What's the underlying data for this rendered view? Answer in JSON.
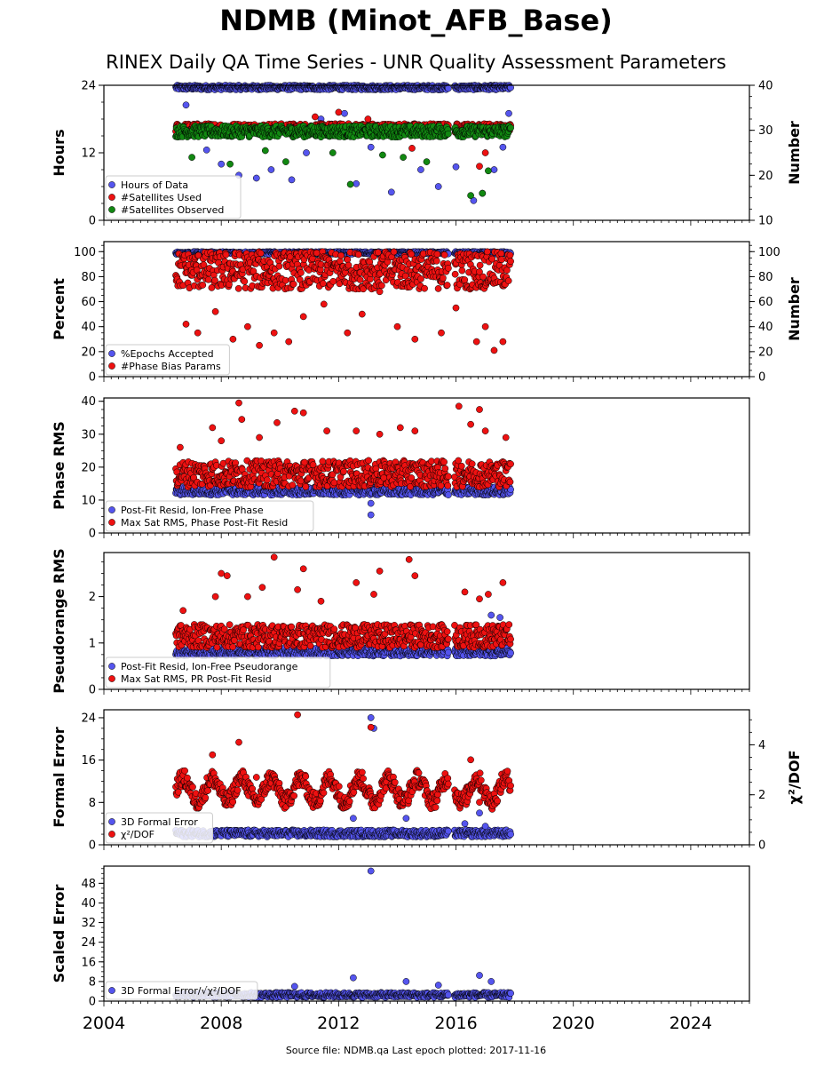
{
  "title": "NDMB (Minot_AFB_Base)",
  "subtitle": "RINEX Daily QA Time Series - UNR Quality Assessment Parameters",
  "source_note": "Source file: NDMB.qa Last epoch plotted: 2017-11-16",
  "colors": {
    "blue": "#5555ee",
    "red": "#ee1111",
    "green": "#118811",
    "black": "#000000"
  },
  "chart_data": [
    {
      "type": "scatter",
      "id": "hours",
      "ylabel": "Hours",
      "y2label": "Number",
      "ylim": [
        0,
        24
      ],
      "y2lim": [
        10,
        40
      ],
      "yticks": [
        "0",
        "12",
        "24"
      ],
      "y2ticks": [
        "10",
        "20",
        "30",
        "40"
      ],
      "xlim": [
        2004,
        2026
      ],
      "legend_position": "lower-left",
      "series": [
        {
          "name": "Hours of Data",
          "color": "#5555ee",
          "axis": "left",
          "band": [
            23.2,
            24
          ],
          "outliers": [
            [
              2006.8,
              20.5
            ],
            [
              2007.5,
              12.5
            ],
            [
              2008.0,
              10.0
            ],
            [
              2008.6,
              8.0
            ],
            [
              2009.2,
              7.5
            ],
            [
              2009.7,
              9.0
            ],
            [
              2010.4,
              7.2
            ],
            [
              2010.9,
              12.0
            ],
            [
              2011.4,
              18.0
            ],
            [
              2012.2,
              19.0
            ],
            [
              2012.6,
              6.5
            ],
            [
              2013.1,
              13.0
            ],
            [
              2013.8,
              5.0
            ],
            [
              2014.3,
              16.0
            ],
            [
              2014.8,
              9.0
            ],
            [
              2015.4,
              6.0
            ],
            [
              2016.0,
              9.5
            ],
            [
              2016.6,
              3.5
            ],
            [
              2016.9,
              4.8
            ],
            [
              2017.3,
              9.0
            ],
            [
              2017.6,
              13.0
            ],
            [
              2017.8,
              19.0
            ]
          ]
        },
        {
          "name": "#Satellites Used",
          "color": "#ee1111",
          "axis": "right",
          "band": [
            29.5,
            31.5
          ],
          "outliers": [
            [
              2011.2,
              33.0
            ],
            [
              2012.0,
              34.0
            ],
            [
              2013.0,
              32.5
            ],
            [
              2014.5,
              26.0
            ],
            [
              2016.8,
              22.0
            ],
            [
              2017.0,
              25.0
            ]
          ]
        },
        {
          "name": "#Satellites Observed",
          "color": "#118811",
          "axis": "right",
          "band": [
            28.5,
            31.0
          ],
          "outliers": [
            [
              2007.0,
              24.0
            ],
            [
              2008.3,
              22.5
            ],
            [
              2009.5,
              25.5
            ],
            [
              2010.2,
              23.0
            ],
            [
              2011.8,
              25.0
            ],
            [
              2012.4,
              18.0
            ],
            [
              2013.5,
              24.5
            ],
            [
              2014.2,
              24.0
            ],
            [
              2015.0,
              23.0
            ],
            [
              2016.5,
              15.5
            ],
            [
              2016.9,
              16.0
            ],
            [
              2017.1,
              21.0
            ]
          ]
        }
      ]
    },
    {
      "type": "scatter",
      "id": "percent",
      "ylabel": "Percent",
      "y2label": "Number",
      "ylim": [
        0,
        108
      ],
      "y2lim": [
        0,
        108
      ],
      "yticks": [
        "0",
        "20",
        "40",
        "60",
        "80",
        "100"
      ],
      "y2ticks": [
        "0",
        "20",
        "40",
        "60",
        "80",
        "100"
      ],
      "xlim": [
        2004,
        2026
      ],
      "legend_position": "lower-left",
      "series": [
        {
          "name": "%Epochs Accepted",
          "color": "#5555ee",
          "axis": "left",
          "band": [
            98,
            100
          ],
          "outliers": [
            [
              2007.0,
              88.0
            ],
            [
              2011.5,
              80.0
            ]
          ]
        },
        {
          "name": "#Phase Bias Params",
          "color": "#ee1111",
          "axis": "right",
          "band": [
            70,
            100
          ],
          "outliers": [
            [
              2006.8,
              42.0
            ],
            [
              2007.2,
              35.0
            ],
            [
              2007.8,
              52.0
            ],
            [
              2008.4,
              30.0
            ],
            [
              2008.9,
              40.0
            ],
            [
              2009.3,
              25.0
            ],
            [
              2009.8,
              35.0
            ],
            [
              2010.3,
              28.0
            ],
            [
              2010.8,
              48.0
            ],
            [
              2011.5,
              58.0
            ],
            [
              2012.3,
              35.0
            ],
            [
              2012.8,
              50.0
            ],
            [
              2013.4,
              68.0
            ],
            [
              2014.0,
              40.0
            ],
            [
              2014.6,
              30.0
            ],
            [
              2015.5,
              35.0
            ],
            [
              2016.0,
              55.0
            ],
            [
              2016.7,
              28.0
            ],
            [
              2017.0,
              40.0
            ],
            [
              2017.3,
              21.0
            ],
            [
              2017.6,
              28.0
            ]
          ]
        }
      ]
    },
    {
      "type": "scatter",
      "id": "phase",
      "ylabel": "Phase RMS",
      "ylim": [
        0,
        41
      ],
      "yticks": [
        "0",
        "10",
        "20",
        "30",
        "40"
      ],
      "xlim": [
        2004,
        2026
      ],
      "legend_position": "lower-left",
      "series": [
        {
          "name": "Post-Fit Resid, Ion-Free Phase",
          "color": "#5555ee",
          "axis": "left",
          "band": [
            11.5,
            14
          ],
          "outliers": [
            [
              2013.1,
              9.0
            ],
            [
              2013.1,
              5.5
            ]
          ]
        },
        {
          "name": "Max Sat RMS, Phase Post-Fit Resid",
          "color": "#ee1111",
          "axis": "left",
          "band": [
            14,
            22
          ],
          "outliers": [
            [
              2006.6,
              26.0
            ],
            [
              2007.7,
              32.0
            ],
            [
              2008.0,
              28.0
            ],
            [
              2008.6,
              39.5
            ],
            [
              2008.7,
              34.5
            ],
            [
              2009.3,
              29.0
            ],
            [
              2009.9,
              33.5
            ],
            [
              2010.5,
              37.0
            ],
            [
              2010.8,
              36.5
            ],
            [
              2011.6,
              31.0
            ],
            [
              2012.6,
              31.0
            ],
            [
              2013.4,
              30.0
            ],
            [
              2014.1,
              32.0
            ],
            [
              2014.6,
              31.0
            ],
            [
              2016.1,
              38.5
            ],
            [
              2016.5,
              33.0
            ],
            [
              2016.8,
              37.5
            ],
            [
              2017.0,
              31.0
            ],
            [
              2017.7,
              29.0
            ]
          ]
        }
      ]
    },
    {
      "type": "scatter",
      "id": "pseudorange",
      "ylabel": "Pseudorange RMS",
      "ylim": [
        0,
        2.95
      ],
      "yticks": [
        "0",
        "1",
        "2"
      ],
      "xlim": [
        2004,
        2026
      ],
      "legend_position": "lower-left",
      "series": [
        {
          "name": "Post-Fit Resid, Ion-Free Pseudorange",
          "color": "#5555ee",
          "axis": "left",
          "band": [
            0.72,
            0.9
          ],
          "outliers": [
            [
              2007.0,
              1.0
            ],
            [
              2016.8,
              1.2
            ],
            [
              2017.2,
              1.6
            ],
            [
              2017.5,
              1.55
            ]
          ]
        },
        {
          "name": "Max Sat RMS, PR Post-Fit Resid",
          "color": "#ee1111",
          "axis": "left",
          "band": [
            0.9,
            1.4
          ],
          "outliers": [
            [
              2006.7,
              1.7
            ],
            [
              2007.8,
              2.0
            ],
            [
              2008.0,
              2.5
            ],
            [
              2008.2,
              2.45
            ],
            [
              2008.9,
              2.0
            ],
            [
              2009.4,
              2.2
            ],
            [
              2009.8,
              2.85
            ],
            [
              2010.6,
              2.15
            ],
            [
              2010.8,
              2.6
            ],
            [
              2011.4,
              1.9
            ],
            [
              2012.6,
              2.3
            ],
            [
              2013.2,
              2.05
            ],
            [
              2013.4,
              2.55
            ],
            [
              2014.4,
              2.8
            ],
            [
              2014.6,
              2.45
            ],
            [
              2016.3,
              2.1
            ],
            [
              2016.8,
              1.95
            ],
            [
              2017.1,
              2.05
            ],
            [
              2017.6,
              2.3
            ]
          ]
        }
      ]
    },
    {
      "type": "scatter",
      "id": "formal",
      "ylabel": "Formal Error",
      "y2label": "χ²/DOF",
      "ylim": [
        0,
        25.5
      ],
      "y2lim": [
        0,
        5.4
      ],
      "yticks": [
        "0",
        "8",
        "16",
        "24"
      ],
      "y2ticks": [
        "0",
        "2",
        "4"
      ],
      "xlim": [
        2004,
        2026
      ],
      "legend_position": "lower-left",
      "series": [
        {
          "name": "3D Formal Error",
          "color": "#5555ee",
          "axis": "left",
          "band": [
            1.5,
            2.8
          ],
          "outliers": [
            [
              2013.1,
              24.0
            ],
            [
              2013.2,
              22.0
            ],
            [
              2012.5,
              5.0
            ],
            [
              2014.3,
              5.0
            ],
            [
              2016.3,
              4.0
            ],
            [
              2016.8,
              6.0
            ],
            [
              2017.0,
              3.5
            ]
          ]
        },
        {
          "name": "χ²/DOF",
          "color": "#ee1111",
          "axis": "right",
          "band_series": "seasonal",
          "base": 2.2,
          "amp": 0.45,
          "spread": 0.35,
          "outliers": [
            [
              2010.6,
              5.2
            ],
            [
              2008.6,
              4.1
            ],
            [
              2013.1,
              4.7
            ],
            [
              2007.7,
              3.6
            ],
            [
              2009.2,
              2.7
            ],
            [
              2016.8,
              1.7
            ],
            [
              2016.5,
              3.4
            ]
          ]
        }
      ]
    },
    {
      "type": "scatter",
      "id": "scaled",
      "ylabel": "Scaled Error",
      "ylim": [
        0,
        55
      ],
      "yticks": [
        "0",
        "8",
        "16",
        "24",
        "32",
        "40",
        "48"
      ],
      "xlim": [
        2004,
        2026
      ],
      "xticks": [
        "2004",
        "2008",
        "2012",
        "2016",
        "2020",
        "2024"
      ],
      "legend_position": "lower-left",
      "series": [
        {
          "name": "3D Formal Error/√χ²/DOF",
          "color": "#5555ee",
          "axis": "left",
          "band": [
            1.5,
            3.5
          ],
          "outliers": [
            [
              2013.1,
              53.0
            ],
            [
              2012.5,
              9.5
            ],
            [
              2014.3,
              8.0
            ],
            [
              2016.8,
              10.5
            ],
            [
              2017.2,
              8.0
            ],
            [
              2010.5,
              6.0
            ],
            [
              2015.4,
              6.5
            ]
          ]
        }
      ]
    }
  ],
  "data_gaps": [
    [
      2004,
      2006.4
    ],
    [
      2015.75,
      2015.95
    ],
    [
      2017.9,
      2026
    ]
  ]
}
